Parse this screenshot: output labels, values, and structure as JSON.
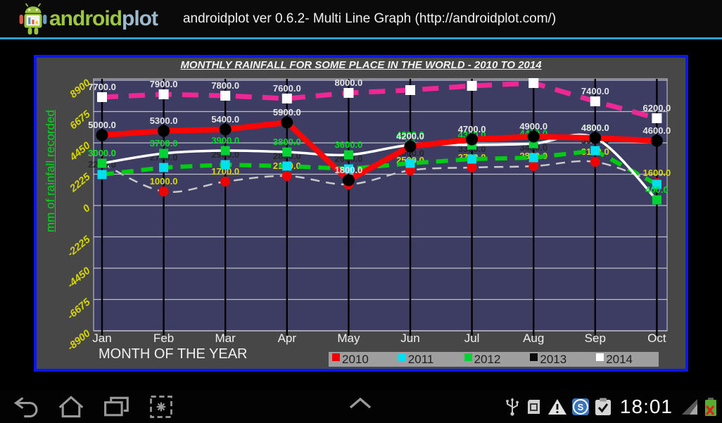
{
  "action_bar": {
    "logo_android": "android",
    "logo_plot": "plot",
    "title": "androidplot ver 0.6.2- Multi Line Graph (http://androidplot.com/)"
  },
  "chart_data": {
    "type": "line",
    "title": "MONTHLY RAINFALL FOR SOME PLACE IN THE WORLD - 2010 TO 2014",
    "xlabel": "MONTH OF THE YEAR",
    "ylabel": "mm of rainfall recorded",
    "categories": [
      "Jan",
      "Feb",
      "Mar",
      "Apr",
      "May",
      "Jun",
      "Jul",
      "Aug",
      "Sep",
      "Oct"
    ],
    "y_ticks": [
      8900,
      6675,
      4450,
      2225,
      0,
      -2225,
      -4450,
      -6675,
      -8900
    ],
    "ylim": [
      -8900,
      9000
    ],
    "grid": true,
    "plot_bg": "#3d3d63",
    "grid_color": "#d4d4dc",
    "month_line_color": "#000000",
    "tick_label_color": "#d6d600",
    "axis_text_color": "#f0f0f0",
    "series": [
      {
        "name": "2010",
        "values": [
          3000,
          1000,
          1700,
          2100,
          1500,
          2500,
          2700,
          2800,
          3100,
          1600
        ],
        "labels": [
          "3000.0",
          "1000.0",
          "1700.0",
          "2100.0",
          null,
          "2500.0",
          "2700.0",
          "2800.0",
          "3100.0",
          "1600.0"
        ],
        "line_color": "#c9c9c9",
        "line_width": 2.5,
        "dash": "13 9",
        "smooth": true,
        "marker": "circle",
        "marker_color": "#f20000",
        "marker_size": 7,
        "label_color": "#d9d900"
      },
      {
        "name": "2011",
        "values": [
          2200,
          2700,
          2900,
          2800,
          2600,
          3000,
          3300,
          3400,
          3900,
          1500
        ],
        "labels": [
          "2200.0",
          "2700.0",
          "2900.0",
          "2800.0",
          "2600.0",
          "3000.0",
          "3300.0",
          "3400.0",
          "3900.0",
          null
        ],
        "line_color": "#00cc14",
        "line_width": 6,
        "dash": "17 11",
        "smooth": false,
        "marker": "square",
        "marker_color": "#00e0f0",
        "marker_size": 13,
        "label_color": "#262626"
      },
      {
        "name": "2012",
        "values": [
          3000,
          3700,
          3900,
          3800,
          3600,
          4300,
          4300,
          4400,
          4800,
          400
        ],
        "labels": [
          "3000.0",
          "3700.0",
          "3900.0",
          "3800.0",
          "3600.0",
          "4300.0",
          "4300.0",
          "4400.0",
          "4800.0",
          "400.0"
        ],
        "line_color": "#ffffff",
        "line_width": 3.5,
        "dash": null,
        "smooth": true,
        "marker": "square",
        "marker_color": "#00d435",
        "marker_size": 13,
        "label_color": "#00dc28"
      },
      {
        "name": "2013",
        "values": [
          5000,
          5300,
          5400,
          5900,
          1800,
          4200,
          4700,
          4900,
          4800,
          4600
        ],
        "labels": [
          "5000.0",
          "5300.0",
          "5400.0",
          "5900.0",
          "1800.0",
          "4200.0",
          "4700.0",
          "4900.0",
          "4800.0",
          "4600.0"
        ],
        "line_color": "#fb0505",
        "line_width": 8,
        "dash": null,
        "smooth": false,
        "marker": "circle",
        "marker_color": "#000000",
        "marker_size": 8.5,
        "label_color": "#e6e6e6"
      },
      {
        "name": "2014",
        "values": [
          7700,
          7900,
          7800,
          7600,
          8000,
          8200,
          8500,
          8700,
          7400,
          6200
        ],
        "labels": [
          "7700.0",
          "7900.0",
          "7800.0",
          "7600.0",
          "8000.0",
          null,
          null,
          null,
          "7400.0",
          "6200.0"
        ],
        "line_color": "#ee2795",
        "line_width": 7,
        "dash": "23 15",
        "smooth": false,
        "marker": "square",
        "marker_color": "#ffffff",
        "marker_size": 14,
        "label_color": "#e6e6e6"
      }
    ],
    "legend": {
      "position": "bottom",
      "entries": [
        {
          "label": "2010",
          "color": "#f20000"
        },
        {
          "label": "2011",
          "color": "#00e0f0"
        },
        {
          "label": "2012",
          "color": "#00d435"
        },
        {
          "label": "2013",
          "color": "#0a0a0a"
        },
        {
          "label": "2014",
          "color": "#ffffff"
        }
      ]
    }
  },
  "nav_bar": {
    "time": "18:01",
    "left_buttons": [
      "back",
      "home",
      "recents",
      "screenshot"
    ],
    "center_button": "quick-controls-chevron",
    "status_icons": [
      "usb",
      "sim-card",
      "warning",
      "skype",
      "clipboard-check",
      "signal",
      "battery-error"
    ],
    "skype_letter": "S"
  }
}
